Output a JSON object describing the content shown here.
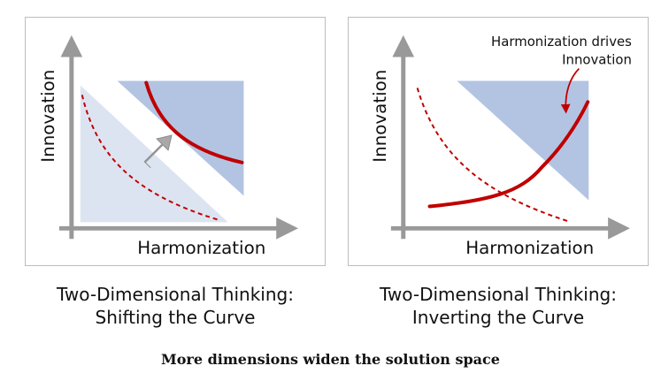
{
  "panels": [
    {
      "axes": {
        "y_label": "Innovation",
        "x_label": "Harmonization"
      },
      "caption": {
        "line1": "Two-Dimensional Thinking:",
        "line2": "Shifting the Curve"
      }
    },
    {
      "axes": {
        "y_label": "Innovation",
        "x_label": "Harmonization"
      },
      "annotation": {
        "line1": "Harmonization drives",
        "line2": "Innovation"
      },
      "caption": {
        "line1": "Two-Dimensional Thinking:",
        "line2": "Inverting the Curve"
      }
    }
  ],
  "figure_caption": "More dimensions widen the solution space",
  "colors": {
    "curve": "#c00000",
    "region_light": "#dde4f1",
    "region_dark": "#b3c4e3",
    "axis": "#999999",
    "arrow_gray": "#a8a8a8",
    "border": "#bdbdbd"
  }
}
